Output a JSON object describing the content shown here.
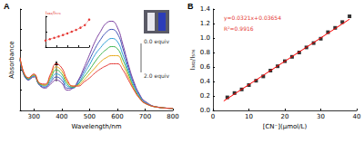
{
  "chart_data": [
    {
      "type": "line",
      "title": "A",
      "xlabel": "Wavelength/nm",
      "ylabel": "Absorbance",
      "x": [
        250,
        280,
        300,
        320,
        340,
        360,
        380,
        400,
        420,
        440,
        460,
        480,
        500,
        520,
        540,
        560,
        580,
        600,
        620,
        640,
        660,
        680,
        700,
        750,
        800
      ],
      "series": [
        {
          "color": "#7b3fa0",
          "values": [
            0.5,
            0.3,
            0.33,
            0.25,
            0.22,
            0.26,
            0.3,
            0.27,
            0.2,
            0.22,
            0.3,
            0.42,
            0.55,
            0.68,
            0.78,
            0.86,
            0.88,
            0.82,
            0.65,
            0.45,
            0.28,
            0.16,
            0.09,
            0.03,
            0.02
          ]
        },
        {
          "color": "#3f51b5",
          "values": [
            0.5,
            0.3,
            0.34,
            0.25,
            0.23,
            0.28,
            0.33,
            0.3,
            0.22,
            0.22,
            0.29,
            0.39,
            0.5,
            0.61,
            0.7,
            0.77,
            0.8,
            0.76,
            0.61,
            0.42,
            0.26,
            0.15,
            0.08,
            0.03,
            0.02
          ]
        },
        {
          "color": "#2e9fd8",
          "values": [
            0.51,
            0.31,
            0.34,
            0.26,
            0.24,
            0.3,
            0.36,
            0.33,
            0.24,
            0.23,
            0.27,
            0.36,
            0.45,
            0.55,
            0.62,
            0.68,
            0.71,
            0.68,
            0.55,
            0.39,
            0.24,
            0.14,
            0.08,
            0.03,
            0.02
          ]
        },
        {
          "color": "#3cb44b",
          "values": [
            0.51,
            0.31,
            0.35,
            0.26,
            0.25,
            0.32,
            0.4,
            0.36,
            0.26,
            0.23,
            0.26,
            0.33,
            0.4,
            0.48,
            0.55,
            0.6,
            0.63,
            0.61,
            0.5,
            0.36,
            0.22,
            0.13,
            0.07,
            0.03,
            0.02
          ]
        },
        {
          "color": "#e6a817",
          "values": [
            0.52,
            0.32,
            0.35,
            0.27,
            0.25,
            0.34,
            0.43,
            0.39,
            0.28,
            0.24,
            0.25,
            0.3,
            0.36,
            0.42,
            0.48,
            0.52,
            0.54,
            0.54,
            0.45,
            0.33,
            0.21,
            0.12,
            0.07,
            0.03,
            0.02
          ]
        },
        {
          "color": "#e53935",
          "values": [
            0.52,
            0.32,
            0.36,
            0.27,
            0.26,
            0.36,
            0.46,
            0.42,
            0.3,
            0.24,
            0.24,
            0.28,
            0.32,
            0.37,
            0.41,
            0.44,
            0.46,
            0.46,
            0.4,
            0.3,
            0.2,
            0.12,
            0.07,
            0.03,
            0.02
          ]
        }
      ],
      "marker": "none",
      "line_style": "solid",
      "xlim": [
        250,
        800
      ],
      "xticks": [
        300,
        400,
        500,
        600,
        700,
        800
      ],
      "ylim": [
        0,
        1
      ],
      "yticks": [
        0,
        0.2,
        0.4,
        0.6,
        0.8,
        1
      ],
      "tick_labels": "x",
      "grid": false,
      "annotations": [
        "0.0 equiv",
        "2.0 equiv"
      ]
    },
    {
      "type": "line",
      "ylabel": "I₃₈₂/I₅₇₆",
      "x": [
        0,
        0.2,
        0.4,
        0.6,
        0.8,
        1.0,
        1.2,
        1.4,
        1.6,
        1.8,
        2.0
      ],
      "series": [
        {
          "color": "#e53935",
          "values": [
            0.3,
            0.36,
            0.42,
            0.48,
            0.55,
            0.62,
            0.7,
            0.78,
            0.88,
            1.0,
            1.25
          ]
        }
      ],
      "marker": "circle",
      "line_style": "dotted",
      "xlim": [
        0,
        2
      ],
      "xticks": [
        0,
        0.5,
        1,
        1.5,
        2
      ],
      "ylim": [
        0,
        1.4
      ],
      "yticks": [
        0,
        0.7,
        1.4
      ],
      "tick_labels": false,
      "grid": false
    },
    {
      "type": "scatter",
      "title": "B",
      "xlabel": "[CN⁻](μmol/L)",
      "ylabel": "I₃₈₂/I₅₇₆",
      "series": [
        {
          "type": "scatter",
          "color": "#000000",
          "marker": "square",
          "x": [
            4,
            6,
            8,
            10,
            12,
            14,
            16,
            18,
            20,
            22,
            24,
            26,
            28,
            30,
            32,
            34,
            36,
            38
          ],
          "values": [
            0.18,
            0.24,
            0.29,
            0.35,
            0.41,
            0.47,
            0.55,
            0.61,
            0.68,
            0.74,
            0.8,
            0.87,
            0.93,
            0.99,
            1.08,
            1.14,
            1.22,
            1.3
          ]
        },
        {
          "type": "line",
          "color": "#ff0000",
          "marker": "none",
          "line_style": "solid",
          "x": [
            3,
            38
          ],
          "values": [
            0.13,
            1.26
          ]
        }
      ],
      "xlim": [
        0,
        40
      ],
      "xticks": [
        0,
        10,
        20,
        30,
        40
      ],
      "ylim": [
        0,
        1.4
      ],
      "yticks": [
        {
          "value": 0,
          "label": "0.0"
        },
        0.2,
        0.4,
        0.6,
        0.8,
        {
          "value": 1,
          "label": "1.0"
        },
        1.2,
        1.4
      ],
      "grid": false,
      "annotations": [
        "y=0.0321x+0.03654",
        "R²=0.9916"
      ]
    }
  ]
}
